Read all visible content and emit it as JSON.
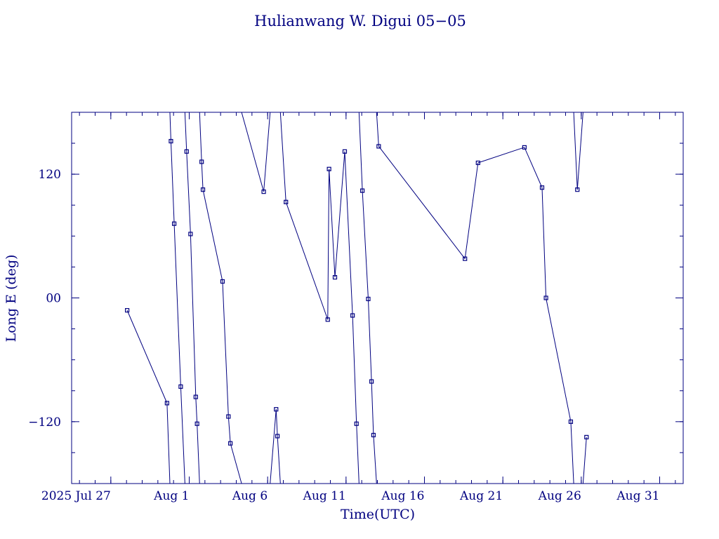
{
  "chart_data": {
    "type": "line",
    "title": "Hulianwang W. Digui 05−05",
    "xlabel": "Time(UTC)",
    "ylabel": "Long E (deg)",
    "xlim": [
      "2025-07-24T12:00",
      "2025-09-01T12:00"
    ],
    "ylim": [
      -180,
      180
    ],
    "x_tick_labels": [
      {
        "date": "2025-07-27",
        "label": "2025 Jul 27"
      },
      {
        "date": "2025-08-01",
        "label": "Aug  1"
      },
      {
        "date": "2025-08-06",
        "label": "Aug  6"
      },
      {
        "date": "2025-08-11",
        "label": "Aug 11"
      },
      {
        "date": "2025-08-16",
        "label": "Aug 16"
      },
      {
        "date": "2025-08-21",
        "label": "Aug 21"
      },
      {
        "date": "2025-08-26",
        "label": "Aug 26"
      },
      {
        "date": "2025-08-31",
        "label": "Aug 31"
      }
    ],
    "y_ticks": [
      {
        "value": 120,
        "label": "120"
      },
      {
        "value": 0,
        "label": "00"
      },
      {
        "value": -120,
        "label": "−120"
      }
    ],
    "color": "#000080",
    "series": [
      {
        "points": [
          {
            "x": "2025-07-28T01:00",
            "y": -12
          },
          {
            "x": "2025-07-30T14:00",
            "y": -102
          },
          {
            "x": "2025-07-30T20:00",
            "y": 152
          },
          {
            "x": "2025-07-31T01:00",
            "y": 72
          },
          {
            "x": "2025-07-31T11:00",
            "y": -86
          },
          {
            "x": "2025-07-31T20:00",
            "y": 142
          },
          {
            "x": "2025-08-01T02:00",
            "y": 62
          },
          {
            "x": "2025-08-01T10:00",
            "y": -96
          },
          {
            "x": "2025-08-01T12:00",
            "y": -122
          },
          {
            "x": "2025-08-01T19:00",
            "y": 132
          },
          {
            "x": "2025-08-01T21:00",
            "y": 105
          },
          {
            "x": "2025-08-03T03:00",
            "y": 16
          },
          {
            "x": "2025-08-03T12:00",
            "y": -115
          },
          {
            "x": "2025-08-03T15:00",
            "y": -141
          },
          {
            "x": "2025-08-05T18:00",
            "y": 103
          },
          {
            "x": "2025-08-06T13:00",
            "y": -108
          },
          {
            "x": "2025-08-06T15:00",
            "y": -134
          },
          {
            "x": "2025-08-07T04:00",
            "y": 93
          },
          {
            "x": "2025-08-09T20:00",
            "y": -21
          },
          {
            "x": "2025-08-09T22:00",
            "y": 125
          },
          {
            "x": "2025-08-10T07:00",
            "y": 20
          },
          {
            "x": "2025-08-10T22:00",
            "y": 142
          },
          {
            "x": "2025-08-11T10:00",
            "y": -17
          },
          {
            "x": "2025-08-11T16:00",
            "y": -122
          },
          {
            "x": "2025-08-12T01:00",
            "y": 104
          },
          {
            "x": "2025-08-12T10:00",
            "y": -1
          },
          {
            "x": "2025-08-12T15:00",
            "y": -81
          },
          {
            "x": "2025-08-12T18:00",
            "y": -133
          },
          {
            "x": "2025-08-13T02:00",
            "y": 147
          },
          {
            "x": "2025-08-18T14:00",
            "y": 38
          },
          {
            "x": "2025-08-19T10:00",
            "y": 131
          },
          {
            "x": "2025-08-22T09:00",
            "y": 146
          },
          {
            "x": "2025-08-23T12:00",
            "y": 107
          },
          {
            "x": "2025-08-23T18:00",
            "y": 0
          },
          {
            "x": "2025-08-25T08:00",
            "y": -120
          },
          {
            "x": "2025-08-25T18:00",
            "y": 105
          },
          {
            "x": "2025-08-26T08:00",
            "y": -135
          }
        ]
      }
    ]
  }
}
